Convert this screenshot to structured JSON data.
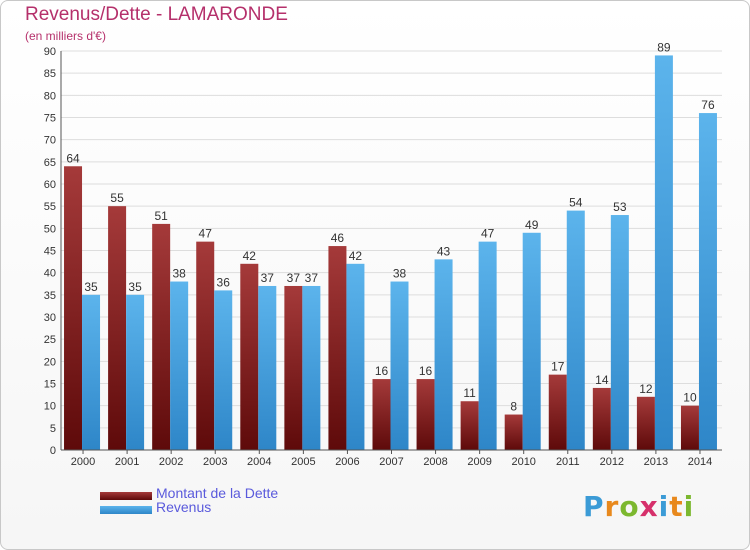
{
  "title": "Revenus/Dette - LAMARONDE",
  "subtitle": "(en milliers d'€)",
  "logo_text": "Proxiti",
  "colors": {
    "debt_dark": "#5e0a0a",
    "debt_light": "#a53a3a",
    "revenue_dark": "#2e86c8",
    "revenue_light": "#5cb4ec",
    "grid": "#dddddd",
    "axis": "#555555"
  },
  "chart_data": {
    "type": "bar",
    "title": "Revenus/Dette - LAMARONDE",
    "subtitle": "(en milliers d'€)",
    "categories": [
      "2000",
      "2001",
      "2002",
      "2003",
      "2004",
      "2005",
      "2006",
      "2007",
      "2008",
      "2009",
      "2010",
      "2011",
      "2012",
      "2013",
      "2014"
    ],
    "series": [
      {
        "name": "Montant de la Dette",
        "values": [
          64,
          55,
          51,
          47,
          42,
          37,
          46,
          16,
          16,
          11,
          8,
          17,
          14,
          12,
          10
        ]
      },
      {
        "name": "Revenus",
        "values": [
          35,
          35,
          38,
          36,
          37,
          37,
          42,
          38,
          43,
          47,
          49,
          54,
          53,
          89,
          76
        ]
      }
    ],
    "ylim": [
      0,
      90
    ],
    "yticks": [
      0,
      5,
      10,
      15,
      20,
      25,
      30,
      35,
      40,
      45,
      50,
      55,
      60,
      65,
      70,
      75,
      80,
      85,
      90
    ],
    "grid": true,
    "legend": "bottom-left"
  }
}
